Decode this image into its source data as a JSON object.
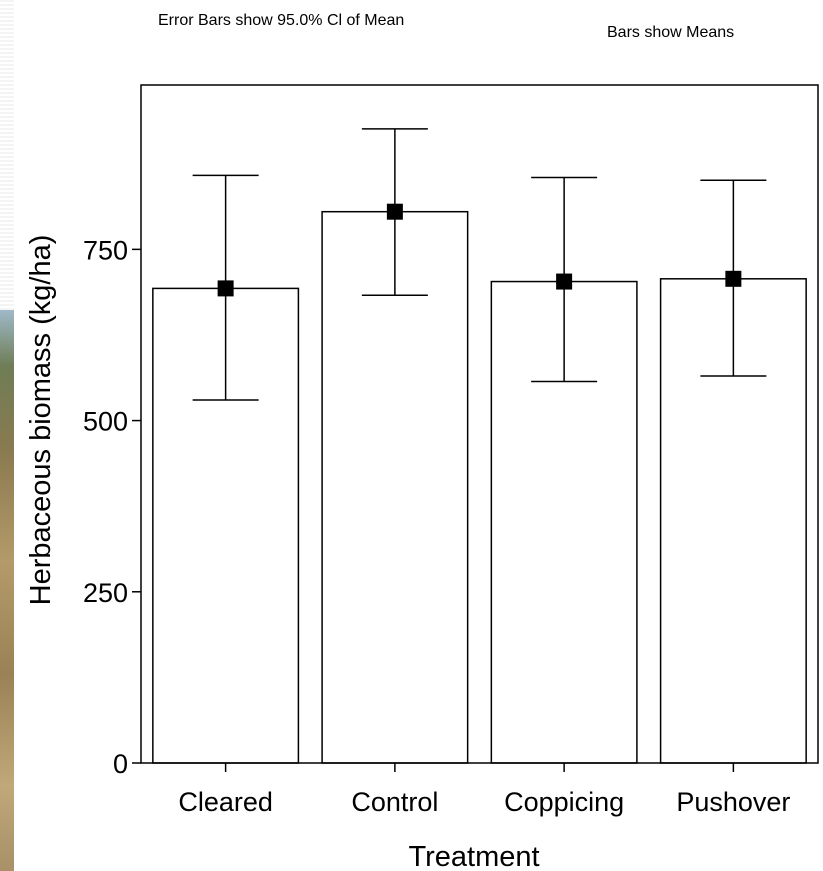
{
  "notes": {
    "left": "Error Bars show 95.0% Cl of Mean",
    "right": "Bars show Means"
  },
  "chart_data": {
    "type": "bar",
    "xlabel": "Treatment",
    "ylabel": "Herbaceous biomass (kg/ha)",
    "categories": [
      "Cleared",
      "Control",
      "Coppicing",
      "Pushover"
    ],
    "values": [
      693,
      805,
      703,
      707
    ],
    "error_low": [
      530,
      683,
      557,
      565
    ],
    "error_high": [
      858,
      926,
      855,
      851
    ],
    "ylim": [
      0,
      990
    ],
    "yticks": [
      0,
      250,
      500,
      750
    ],
    "grid": false,
    "colors": {
      "bar_fill": "#ffffff",
      "stroke": "#000000",
      "marker": "#000000"
    }
  }
}
